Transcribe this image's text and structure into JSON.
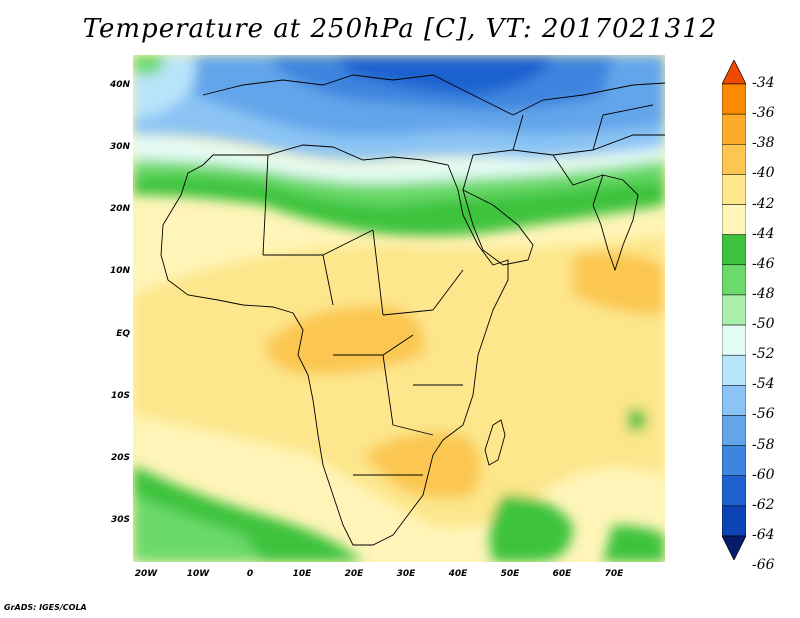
{
  "title": "Temperature at 250hPa [C], VT: 2017021312",
  "credit": "GrADS: IGES/COLA",
  "lat_labels": [
    "40N",
    "30N",
    "20N",
    "10N",
    "EQ",
    "10S",
    "20S",
    "30S"
  ],
  "lon_labels": [
    "20W",
    "10W",
    "0",
    "10E",
    "20E",
    "30E",
    "40E",
    "50E",
    "60E",
    "70E"
  ],
  "colorbar": {
    "labels": [
      "-34",
      "-36",
      "-38",
      "-40",
      "-42",
      "-44",
      "-46",
      "-48",
      "-50",
      "-52",
      "-54",
      "-56",
      "-58",
      "-60",
      "-62",
      "-64",
      "-66"
    ],
    "colors": [
      "#f04a00",
      "#fb8a00",
      "#fdab2c",
      "#fbc751",
      "#fde68b",
      "#fff5b8",
      "#3ec33e",
      "#6bd96b",
      "#a9eea9",
      "#e4fbf5",
      "#b8e4fa",
      "#8bc4f4",
      "#64a5ea",
      "#3e85df",
      "#1f62cf",
      "#0c44b5",
      "#071d6c"
    ]
  },
  "map": {
    "extent": {
      "lon": [
        -22,
        80
      ],
      "lat": [
        -37,
        45
      ]
    }
  }
}
